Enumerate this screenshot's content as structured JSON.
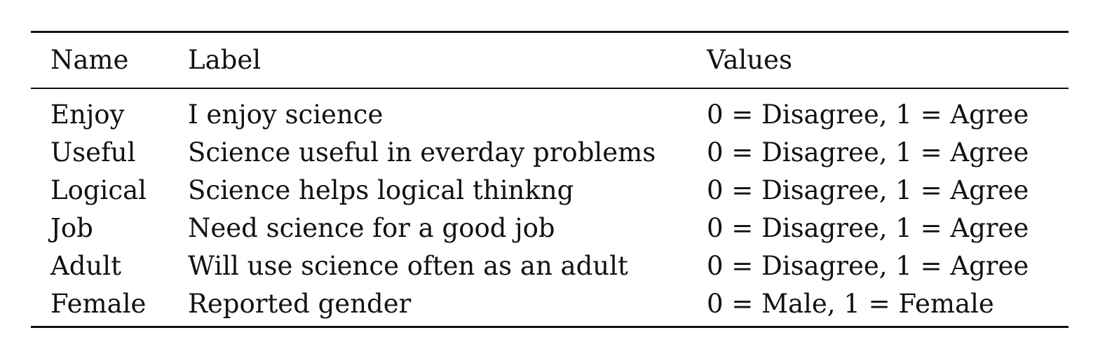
{
  "table": {
    "headers": {
      "name": "Name",
      "label": "Label",
      "values": "Values"
    },
    "rows": [
      {
        "name": "Enjoy",
        "label": "I enjoy science",
        "values": "0 = Disagree, 1 = Agree"
      },
      {
        "name": "Useful",
        "label": "Science useful in everday problems",
        "values": "0 = Disagree, 1 = Agree"
      },
      {
        "name": "Logical",
        "label": "Science helps logical thinkng",
        "values": "0 = Disagree, 1 = Agree"
      },
      {
        "name": "Job",
        "label": "Need science for a good job",
        "values": "0 = Disagree, 1 = Agree"
      },
      {
        "name": "Adult",
        "label": "Will use science often as an adult",
        "values": "0 = Disagree, 1 = Agree"
      },
      {
        "name": "Female",
        "label": "Reported gender",
        "values": "0 = Male, 1 = Female"
      }
    ]
  }
}
